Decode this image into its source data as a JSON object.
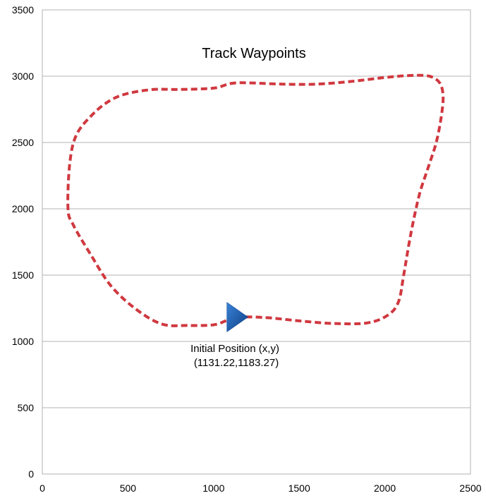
{
  "chart_data": {
    "type": "line",
    "title": "Track Waypoints",
    "xlabel": "",
    "ylabel": "",
    "xlim": [
      0,
      2500
    ],
    "ylim": [
      0,
      3500
    ],
    "xticks": [
      0,
      500,
      1000,
      1500,
      2000,
      2500
    ],
    "yticks": [
      0,
      500,
      1000,
      1500,
      2000,
      2500,
      3000,
      3500
    ],
    "grid": "horizontal",
    "series": [
      {
        "color": "#d0383f",
        "style": "dashed",
        "closed": true,
        "x": [
          1131,
          1300,
          1500,
          1700,
          1900,
          2020,
          2080,
          2110,
          2150,
          2200,
          2250,
          2300,
          2330,
          2340,
          2320,
          2260,
          2150,
          2000,
          1800,
          1600,
          1400,
          1200,
          1100,
          1000,
          800,
          650,
          500,
          400,
          300,
          200,
          160,
          150,
          180,
          280,
          400,
          550,
          700,
          850,
          1000,
          1080,
          1131
        ],
        "y": [
          1183,
          1180,
          1155,
          1135,
          1140,
          1200,
          1300,
          1500,
          1800,
          2100,
          2300,
          2500,
          2700,
          2850,
          2950,
          3000,
          3005,
          2990,
          2960,
          2940,
          2940,
          2950,
          2945,
          2910,
          2900,
          2900,
          2870,
          2820,
          2720,
          2560,
          2340,
          2000,
          1880,
          1660,
          1420,
          1240,
          1130,
          1120,
          1125,
          1160,
          1183
        ]
      }
    ],
    "marker": {
      "x": 1131.22,
      "y": 1183.27,
      "shape": "triangle-right",
      "color": "#1a5aa8"
    },
    "annotation": {
      "line1": "Initial Position (x,y)",
      "line2": "(1131.22,1183.27)"
    }
  }
}
